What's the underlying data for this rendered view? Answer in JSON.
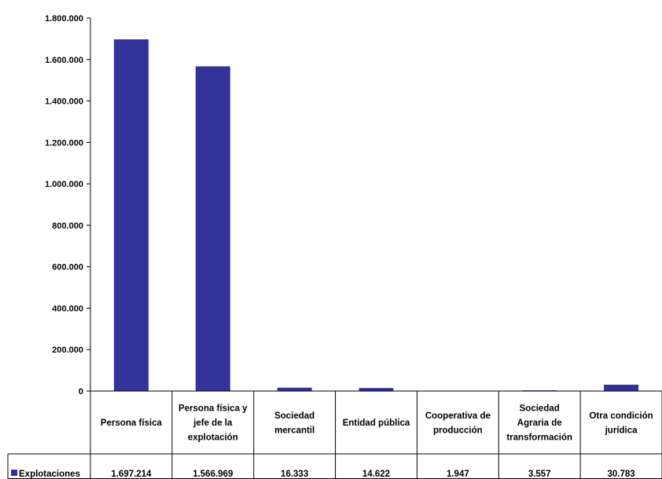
{
  "chart_data": {
    "type": "bar",
    "categories": [
      [
        "Persona física"
      ],
      [
        "Persona física y",
        "jefe de la",
        "explotación"
      ],
      [
        "Sociedad",
        "mercantil"
      ],
      [
        "Entidad pública"
      ],
      [
        "Cooperativa de",
        "producción"
      ],
      [
        "Sociedad",
        "Agraria de",
        "transformación"
      ],
      [
        "Otra condición",
        "jurídica"
      ]
    ],
    "series": [
      {
        "name": "Explotaciones",
        "values": [
          1697214,
          1566969,
          16333,
          14622,
          1947,
          3557,
          30783
        ],
        "value_labels": [
          "1.697.214",
          "1.566.969",
          "16.333",
          "14.622",
          "1.947",
          "3.557",
          "30.783"
        ],
        "color": "#333399"
      }
    ],
    "ylim": [
      0,
      1800000
    ],
    "yticks": [
      0,
      200000,
      400000,
      600000,
      800000,
      1000000,
      1200000,
      1400000,
      1600000,
      1800000
    ],
    "ytick_labels": [
      "0",
      "200.000",
      "400.000",
      "600.000",
      "800.000",
      "1.000.000",
      "1.200.000",
      "1.400.000",
      "1.600.000",
      "1.800.000"
    ],
    "grid": false,
    "legend": "bottom-left, inside data table",
    "data_table": true
  }
}
